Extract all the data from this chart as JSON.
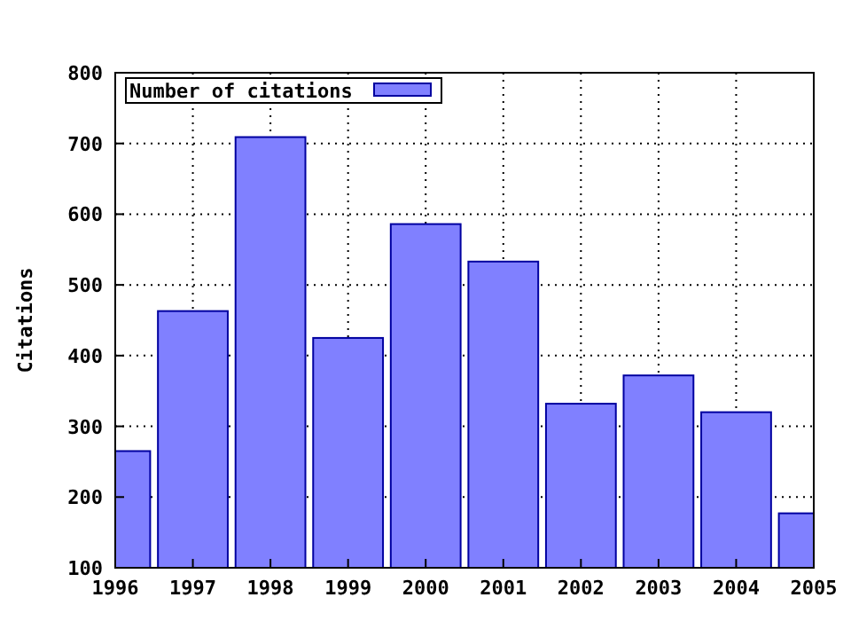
{
  "chart_data": {
    "type": "bar",
    "ylabel": "Citations",
    "x": [
      1996,
      1997,
      1998,
      1999,
      2000,
      2001,
      2002,
      2003,
      2004,
      2005
    ],
    "series": [
      {
        "name": "Number of citations",
        "color": "#8080ff",
        "values": [
          265,
          463,
          709,
          425,
          586,
          533,
          332,
          372,
          320,
          177
        ]
      }
    ],
    "xlim": [
      1996,
      2005
    ],
    "xticks": [
      1996,
      1997,
      1998,
      1999,
      2000,
      2001,
      2002,
      2003,
      2004,
      2005
    ],
    "ylim": [
      100,
      800
    ],
    "yticks": [
      100,
      200,
      300,
      400,
      500,
      600,
      700,
      800
    ],
    "grid": true,
    "legend": "top left"
  }
}
